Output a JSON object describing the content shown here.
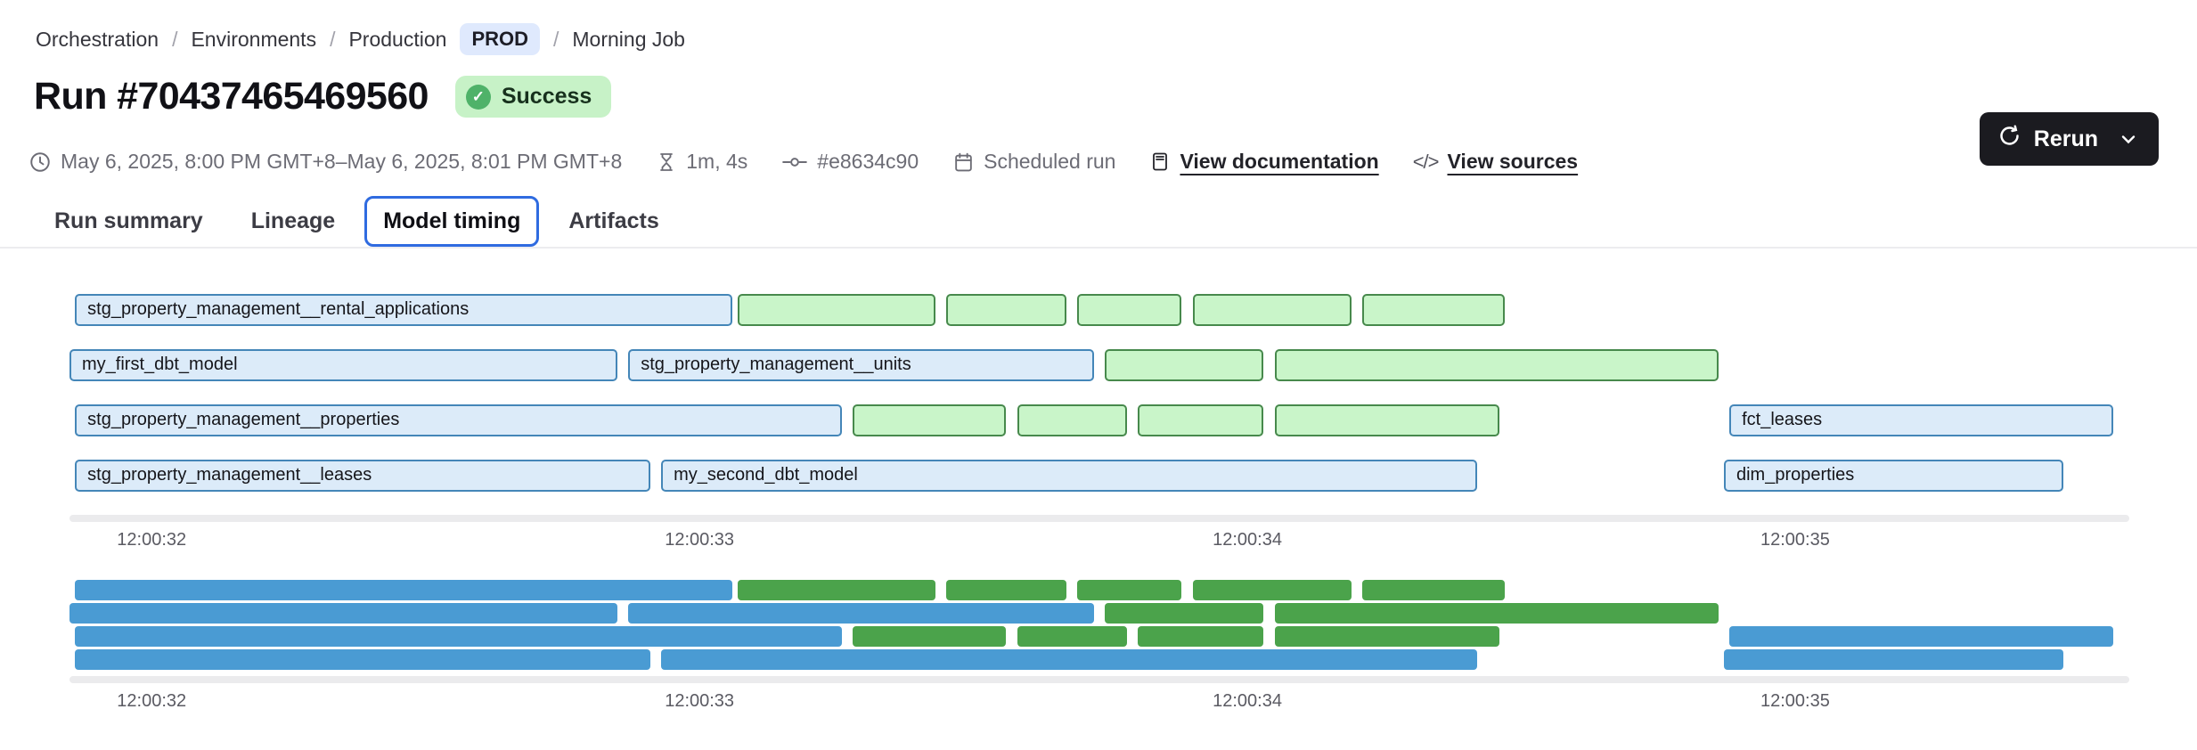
{
  "breadcrumb": {
    "separator": "/",
    "items": [
      "Orchestration",
      "Environments",
      "Production",
      "Morning Job"
    ],
    "env_badge": "PROD"
  },
  "header": {
    "title": "Run #70437465469560",
    "status": "Success",
    "check_glyph": "✓"
  },
  "meta": {
    "time_range": "May 6, 2025, 8:00 PM GMT+8–May 6, 2025, 8:01 PM GMT+8",
    "duration": "1m, 4s",
    "commit": "#e8634c90",
    "trigger": "Scheduled run",
    "docs_link": "View documentation",
    "sources_link": "View sources",
    "code_glyph": "</>"
  },
  "actions": {
    "rerun_label": "Rerun"
  },
  "tabs": [
    {
      "label": "Run summary",
      "active": false
    },
    {
      "label": "Lineage",
      "active": false
    },
    {
      "label": "Model timing",
      "active": true
    },
    {
      "label": "Artifacts",
      "active": false
    }
  ],
  "colors": {
    "accent-blue": "#2f6be0",
    "badge-env-bg": "#dfe9fd",
    "status-bg": "#c7f2c7",
    "status-dot": "#4fb269",
    "bar-blue-fill": "#dcebf9",
    "bar-blue-border": "#4486b8",
    "bar-green-fill": "#c9f5c9",
    "bar-green-border": "#47894c",
    "mini-blue": "#4a9bd3",
    "mini-green": "#4ba34b",
    "scrollbar": "#ebebed",
    "rerun-bg": "#1b1b20"
  },
  "chart_data": {
    "type": "gantt",
    "time_unit": "seconds of 12:00:xx",
    "x_domain_seconds": [
      31.85,
      35.61
    ],
    "ticks": [
      {
        "label": "12:00:32",
        "t": 32
      },
      {
        "label": "12:00:33",
        "t": 33
      },
      {
        "label": "12:00:34",
        "t": 34
      },
      {
        "label": "12:00:35",
        "t": 35
      }
    ],
    "legend_note": "blue outlined = model run, green outlined = test; minimap repeats same bars in solid colors",
    "rows": [
      [
        {
          "label": "stg_property_management__rental_applications",
          "kind": "model",
          "start": 31.86,
          "end": 33.06
        },
        {
          "label": "",
          "kind": "test",
          "start": 33.07,
          "end": 33.43
        },
        {
          "label": "",
          "kind": "test",
          "start": 33.45,
          "end": 33.67
        },
        {
          "label": "",
          "kind": "test",
          "start": 33.69,
          "end": 33.88
        },
        {
          "label": "",
          "kind": "test",
          "start": 33.9,
          "end": 34.19
        },
        {
          "label": "",
          "kind": "test",
          "start": 34.21,
          "end": 34.47
        }
      ],
      [
        {
          "label": "my_first_dbt_model",
          "kind": "model",
          "start": 31.85,
          "end": 32.85
        },
        {
          "label": "stg_property_management__units",
          "kind": "model",
          "start": 32.87,
          "end": 33.72
        },
        {
          "label": "",
          "kind": "test",
          "start": 33.74,
          "end": 34.03
        },
        {
          "label": "",
          "kind": "test",
          "start": 34.05,
          "end": 34.86
        }
      ],
      [
        {
          "label": "stg_property_management__properties",
          "kind": "model",
          "start": 31.86,
          "end": 33.26
        },
        {
          "label": "",
          "kind": "test",
          "start": 33.28,
          "end": 33.56
        },
        {
          "label": "",
          "kind": "test",
          "start": 33.58,
          "end": 33.78
        },
        {
          "label": "",
          "kind": "test",
          "start": 33.8,
          "end": 34.03
        },
        {
          "label": "",
          "kind": "test",
          "start": 34.05,
          "end": 34.46
        },
        {
          "label": "fct_leases",
          "kind": "model",
          "start": 34.88,
          "end": 35.58
        }
      ],
      [
        {
          "label": "stg_property_management__leases",
          "kind": "model",
          "start": 31.86,
          "end": 32.91
        },
        {
          "label": "my_second_dbt_model",
          "kind": "model",
          "start": 32.93,
          "end": 34.42
        },
        {
          "label": "dim_properties",
          "kind": "model",
          "start": 34.87,
          "end": 35.49
        }
      ]
    ]
  }
}
